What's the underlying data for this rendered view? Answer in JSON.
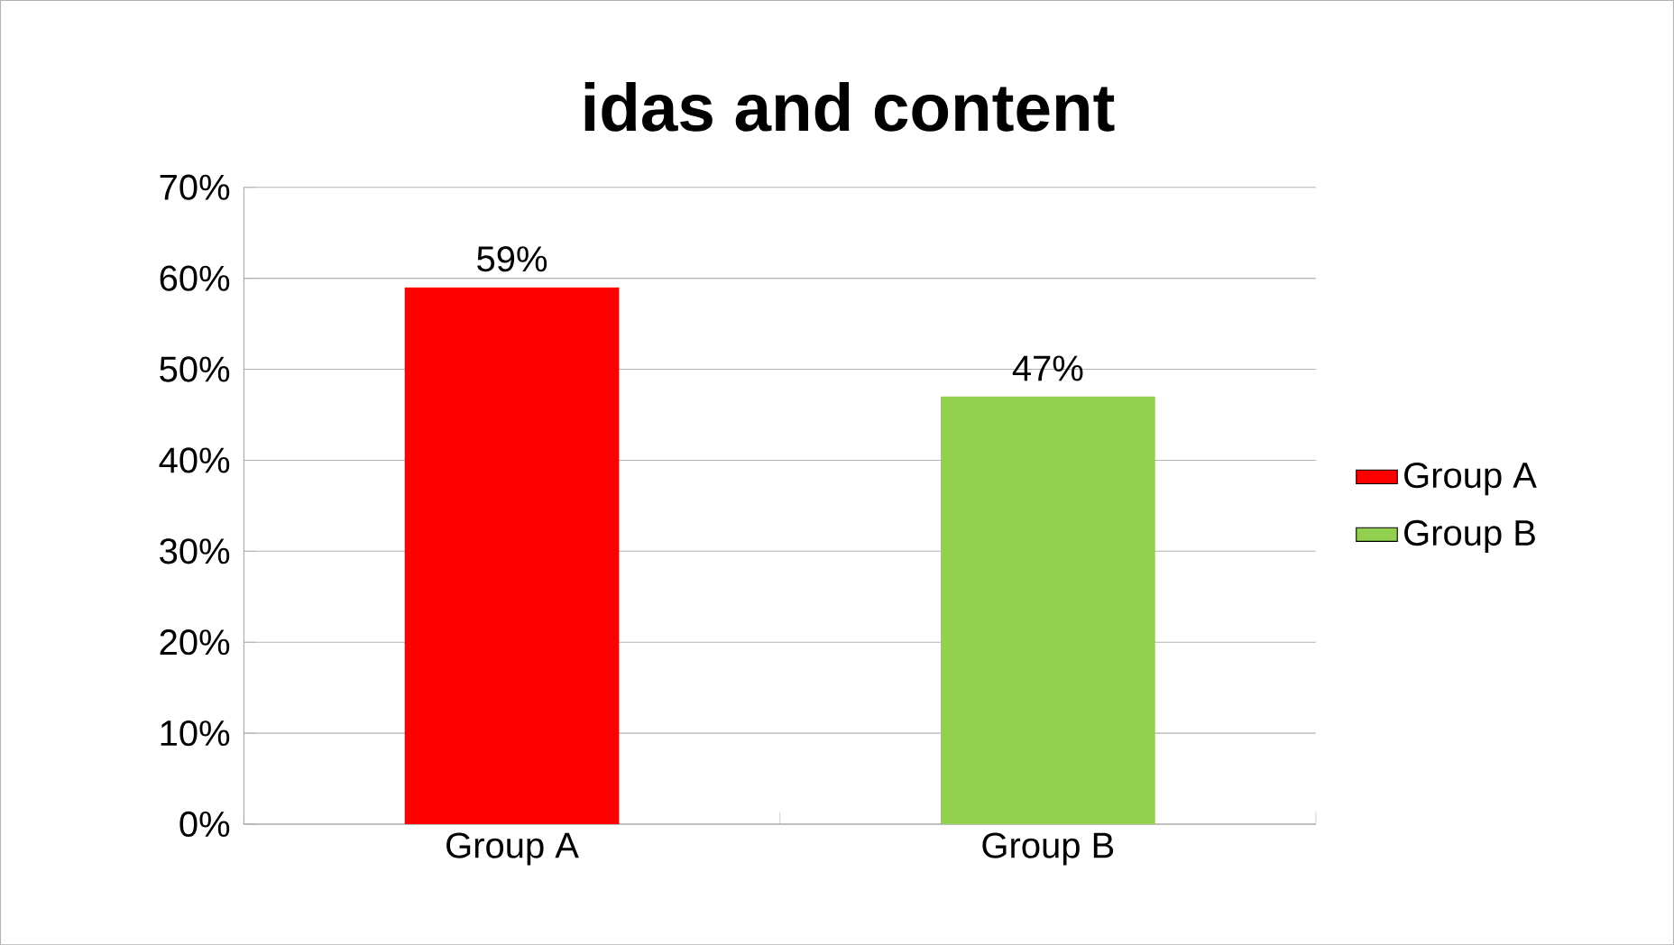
{
  "chart_data": {
    "type": "bar",
    "title": "idas and content",
    "categories": [
      "Group A",
      "Group B"
    ],
    "series": [
      {
        "name": "Group A",
        "color": "#ff0000",
        "values": [
          59,
          null
        ],
        "value_labels": [
          "59%",
          null
        ]
      },
      {
        "name": "Group B",
        "color": "#92d050",
        "values": [
          null,
          47
        ],
        "value_labels": [
          null,
          "47%"
        ]
      }
    ],
    "ylim": [
      0,
      70
    ],
    "yticks": [
      {
        "value": 0,
        "label": "0%"
      },
      {
        "value": 10,
        "label": "10%"
      },
      {
        "value": 20,
        "label": "20%"
      },
      {
        "value": 30,
        "label": "30%"
      },
      {
        "value": 40,
        "label": "40%"
      },
      {
        "value": 50,
        "label": "50%"
      },
      {
        "value": 60,
        "label": "60%"
      },
      {
        "value": 70,
        "label": "70%"
      }
    ],
    "grid": "y",
    "legend": "right"
  }
}
